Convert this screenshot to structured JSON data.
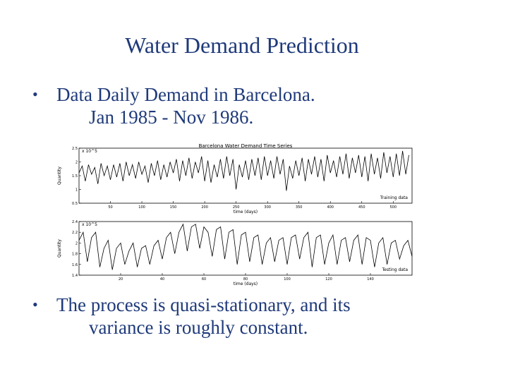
{
  "slide": {
    "title": "Water Demand Prediction",
    "bullets": [
      {
        "line1": "Data Daily Demand in Barcelona.",
        "line2": "Jan 1985 - Nov 1986."
      },
      {
        "line1": "The process is quasi-stationary, and its",
        "line2": "variance is roughly constant."
      }
    ],
    "bullet_char": "•"
  },
  "chart_data": [
    {
      "type": "line",
      "title": "Barcelona Water Demand Time Series",
      "xlabel": "time (days)",
      "ylabel": "Quantity",
      "y_exponent_label": "x 10^5",
      "annotation": "Training data",
      "x_tick_labels": [
        "50",
        "100",
        "150",
        "200",
        "250",
        "300",
        "350",
        "400",
        "450",
        "500"
      ],
      "y_tick_labels": [
        "2.5",
        "2",
        "1.5",
        "1",
        "0.5"
      ],
      "xlim": [
        0,
        530
      ],
      "ylim": [
        0.5,
        2.5
      ],
      "grid": false,
      "series": [
        {
          "color": "#000000",
          "x": [
            0,
            5,
            10,
            15,
            20,
            25,
            30,
            35,
            40,
            45,
            50,
            55,
            60,
            65,
            70,
            75,
            80,
            85,
            90,
            95,
            100,
            105,
            110,
            115,
            120,
            125,
            130,
            135,
            140,
            145,
            150,
            155,
            160,
            165,
            170,
            175,
            180,
            185,
            190,
            195,
            200,
            205,
            210,
            215,
            220,
            225,
            230,
            235,
            240,
            245,
            250,
            255,
            260,
            265,
            270,
            275,
            280,
            285,
            290,
            295,
            300,
            305,
            310,
            315,
            320,
            325,
            330,
            335,
            340,
            345,
            350,
            355,
            360,
            365,
            370,
            375,
            380,
            385,
            390,
            395,
            400,
            405,
            410,
            415,
            420,
            425,
            430,
            435,
            440,
            445,
            450,
            455,
            460,
            465,
            470,
            475,
            480,
            485,
            490,
            495,
            500,
            505,
            510,
            515,
            520,
            525
          ],
          "values": [
            1.6,
            1.85,
            1.3,
            1.9,
            1.55,
            1.8,
            1.2,
            1.95,
            1.5,
            1.85,
            1.35,
            1.9,
            1.45,
            1.95,
            1.3,
            2.0,
            1.5,
            1.9,
            1.4,
            2.0,
            1.55,
            1.85,
            1.25,
            1.95,
            1.5,
            2.05,
            1.35,
            1.9,
            1.45,
            2.0,
            1.6,
            2.1,
            1.3,
            2.05,
            1.5,
            2.15,
            1.4,
            2.0,
            1.6,
            2.2,
            1.3,
            2.05,
            1.25,
            1.9,
            1.45,
            2.1,
            1.4,
            2.2,
            1.5,
            2.1,
            1.0,
            1.9,
            1.45,
            2.05,
            1.35,
            2.1,
            1.5,
            2.15,
            1.35,
            2.2,
            1.5,
            2.05,
            1.4,
            2.2,
            1.55,
            2.1,
            0.95,
            1.85,
            1.4,
            2.05,
            1.5,
            2.15,
            1.3,
            2.1,
            1.55,
            2.2,
            1.45,
            2.1,
            1.3,
            2.25,
            1.6,
            2.05,
            1.45,
            2.2,
            1.55,
            2.3,
            1.4,
            2.15,
            1.6,
            2.25,
            1.45,
            2.2,
            1.3,
            2.3,
            1.55,
            2.15,
            1.4,
            2.35,
            1.6,
            2.2,
            1.45,
            2.3,
            1.5,
            2.4,
            1.55,
            2.25
          ]
        }
      ]
    },
    {
      "type": "line",
      "title": "",
      "xlabel": "time (days)",
      "ylabel": "Quantity",
      "y_exponent_label": "x 10^5",
      "annotation": "Testing data",
      "x_tick_labels": [
        "20",
        "40",
        "60",
        "80",
        "100",
        "120",
        "140"
      ],
      "y_tick_labels": [
        "2.4",
        "2.2",
        "2",
        "1.8",
        "1.6",
        "1.4"
      ],
      "xlim": [
        0,
        160
      ],
      "ylim": [
        1.4,
        2.4
      ],
      "grid": false,
      "series": [
        {
          "color": "#000000",
          "x": [
            0,
            2,
            4,
            6,
            8,
            10,
            12,
            14,
            16,
            18,
            20,
            22,
            24,
            26,
            28,
            30,
            32,
            34,
            36,
            38,
            40,
            42,
            44,
            46,
            48,
            50,
            52,
            54,
            56,
            58,
            60,
            62,
            64,
            66,
            68,
            70,
            72,
            74,
            76,
            78,
            80,
            82,
            84,
            86,
            88,
            90,
            92,
            94,
            96,
            98,
            100,
            102,
            104,
            106,
            108,
            110,
            112,
            114,
            116,
            118,
            120,
            122,
            124,
            126,
            128,
            130,
            132,
            134,
            136,
            138,
            140,
            142,
            144,
            146,
            148,
            150,
            152,
            154,
            156,
            158,
            160
          ],
          "values": [
            2.05,
            2.2,
            1.65,
            2.1,
            2.2,
            1.55,
            1.9,
            2.05,
            1.5,
            1.9,
            2.0,
            1.6,
            1.85,
            2.0,
            1.55,
            1.9,
            1.95,
            1.6,
            1.95,
            2.05,
            1.7,
            2.1,
            2.2,
            1.8,
            2.2,
            2.35,
            1.85,
            2.3,
            2.35,
            1.9,
            2.3,
            2.2,
            1.75,
            2.25,
            2.3,
            1.7,
            2.2,
            2.25,
            1.6,
            2.15,
            2.2,
            1.65,
            2.1,
            2.15,
            1.6,
            2.0,
            2.1,
            1.65,
            2.05,
            2.1,
            1.6,
            2.1,
            2.15,
            1.7,
            2.1,
            2.2,
            1.55,
            2.1,
            2.15,
            1.6,
            2.0,
            2.15,
            1.6,
            2.05,
            2.1,
            1.65,
            2.05,
            2.15,
            1.6,
            2.1,
            2.05,
            1.55,
            2.0,
            2.1,
            1.6,
            2.0,
            2.05,
            1.7,
            1.95,
            2.05,
            1.75
          ]
        }
      ]
    }
  ]
}
